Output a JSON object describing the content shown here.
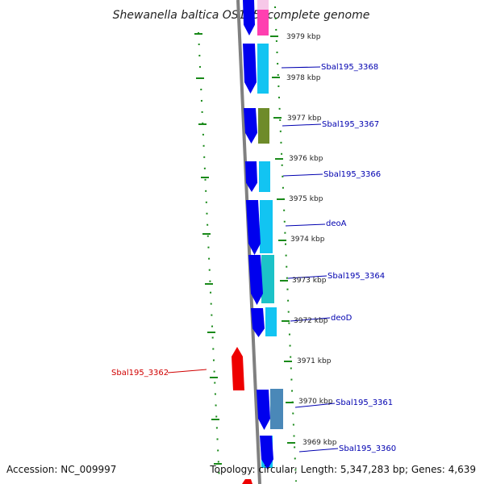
{
  "title": "Shewanella baltica OS195, complete genome",
  "footer": {
    "accession": "Accession: NC_009997",
    "topology": "Topology: circular; Length: 5,347,283 bp; Genes: 4,639"
  },
  "kbp_labels": [
    "3979 kbp",
    "3978 kbp",
    "3977 kbp",
    "3976 kbp",
    "3975 kbp",
    "3974 kbp",
    "3973 kbp",
    "3972 kbp",
    "3971 kbp",
    "3970 kbp",
    "3969 kbp"
  ],
  "gene_labels": [
    "Sbal195_3368",
    "Sbal195_3367",
    "Sbal195_3366",
    "deoA",
    "Sbal195_3364",
    "deoD",
    "Sbal195_3362",
    "Sbal195_3361",
    "Sbal195_3360"
  ],
  "colors": {
    "backbone": "#808080",
    "cds_forward": "#0000ee",
    "reverse_strand": "#ee0000",
    "label_blue": "#0000b0",
    "label_red": "#d00000",
    "dash_green": "#1a8a1a",
    "feature_pink": "#ff3fb0",
    "feature_light_pink": "#f7c8e8",
    "feature_cyan": "#12c4f2",
    "feature_olive": "#6e8b2a",
    "feature_teal": "#1cc2c8",
    "feature_steel": "#4a88b8"
  }
}
